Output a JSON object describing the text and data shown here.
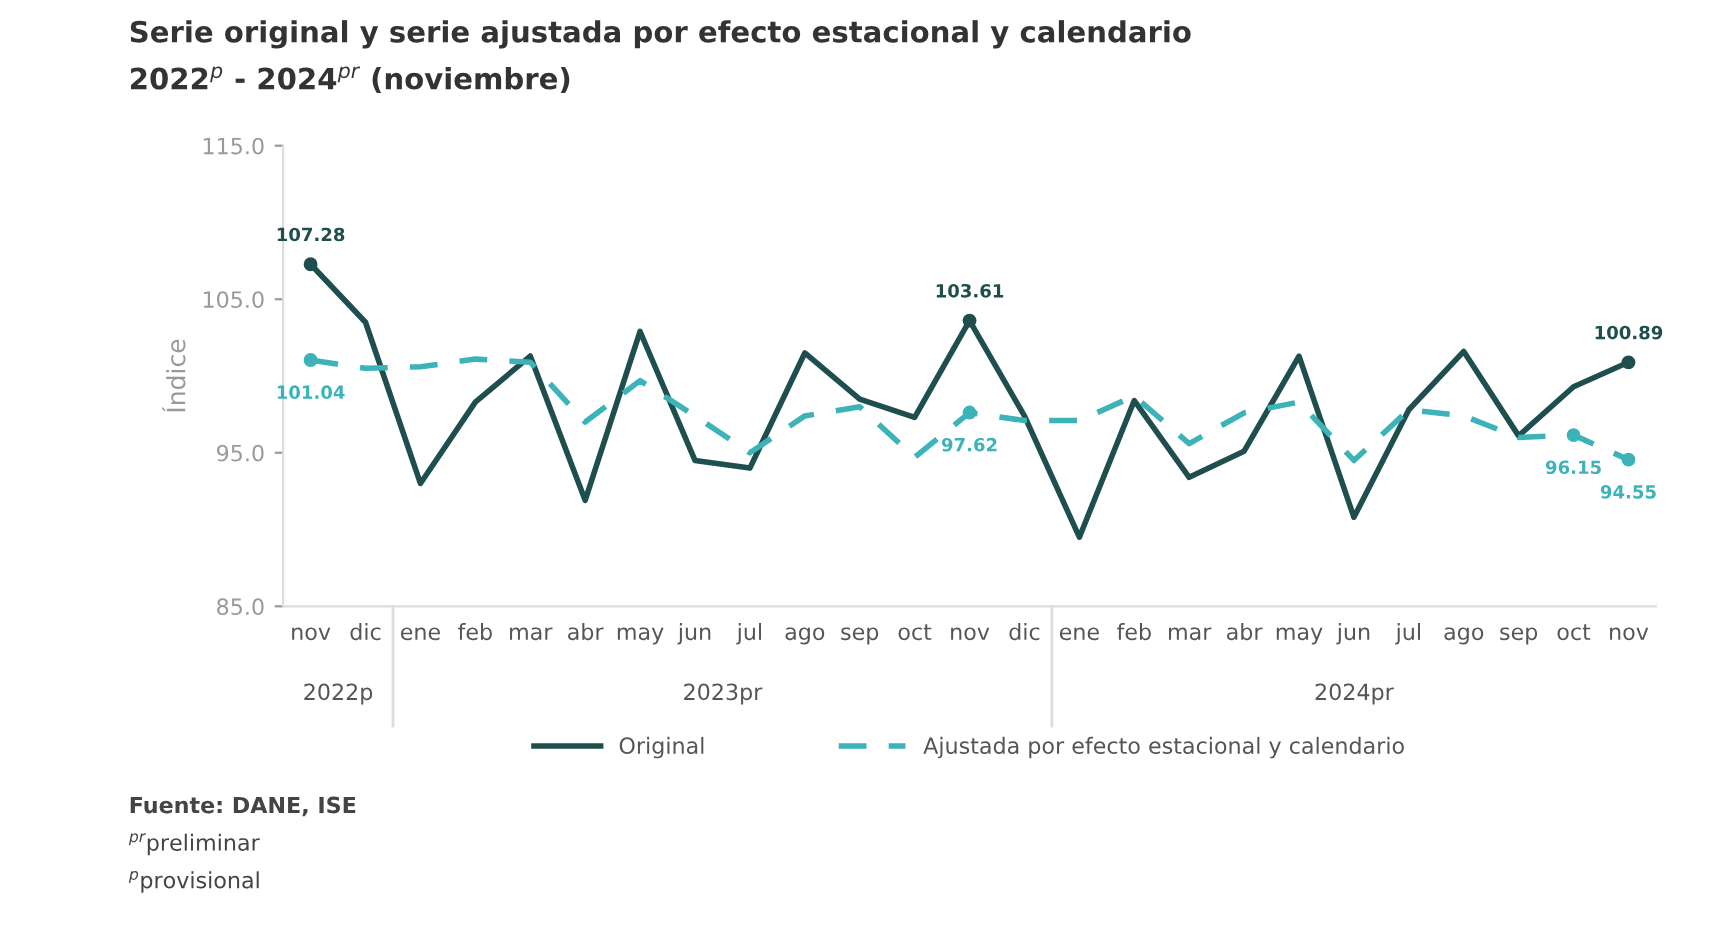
{
  "chart_data": {
    "type": "line",
    "title": "Serie original y serie ajustada por efecto estacional y calendario",
    "subtitle": "2022$^{p}$ - 2024$^{pr}$ (noviembre)",
    "ylabel": "Índice",
    "categories": [
      "nov",
      "dic",
      "ene",
      "feb",
      "mar",
      "abr",
      "may",
      "jun",
      "jul",
      "ago",
      "sep",
      "oct",
      "nov",
      "dic",
      "ene",
      "feb",
      "mar",
      "abr",
      "may",
      "jun",
      "jul",
      "ago",
      "sep",
      "oct",
      "nov"
    ],
    "series": [
      {
        "name": "Original",
        "color": "#1f4e4f",
        "line_style": "solid",
        "values": [
          107.28,
          103.5,
          93.0,
          98.3,
          101.3,
          91.9,
          102.9,
          94.5,
          94.0,
          101.5,
          98.5,
          97.3,
          103.61,
          97.4,
          89.5,
          98.4,
          93.4,
          95.1,
          101.3,
          90.8,
          97.8,
          101.6,
          96.1,
          99.3,
          100.89
        ],
        "value_labels": [
          "107.28",
          null,
          null,
          null,
          null,
          null,
          null,
          null,
          null,
          null,
          null,
          null,
          "103.61",
          null,
          null,
          null,
          null,
          null,
          null,
          null,
          null,
          null,
          null,
          null,
          "100.89"
        ]
      },
      {
        "name": "Ajustada por efecto estacional y calendario",
        "color": "#3cb3b8",
        "line_style": "dashed",
        "values": [
          101.04,
          100.5,
          100.6,
          101.1,
          100.9,
          97.0,
          99.7,
          97.4,
          95.0,
          97.4,
          98.0,
          94.7,
          97.62,
          97.1,
          97.1,
          98.7,
          95.6,
          97.6,
          98.3,
          94.5,
          97.8,
          97.4,
          96.0,
          96.15,
          94.55
        ],
        "value_labels": [
          "101.04",
          null,
          null,
          null,
          null,
          null,
          null,
          null,
          null,
          null,
          null,
          null,
          "97.62",
          null,
          null,
          null,
          null,
          null,
          null,
          null,
          null,
          null,
          null,
          "96.15",
          "94.55"
        ]
      }
    ],
    "ylim": [
      85,
      115
    ],
    "yticks": [
      {
        "value": 85,
        "label": "85.0"
      },
      {
        "value": 95,
        "label": "95.0"
      },
      {
        "value": 105,
        "label": "105.0"
      },
      {
        "value": 115,
        "label": "115.0"
      }
    ],
    "grid": false,
    "legend": "bottom",
    "annotations": [
      "2022p",
      "2023pr",
      "2024pr",
      "Fuente: DANE, ISE",
      "$^{pr}$preliminar",
      "$^{p}$provisional"
    ]
  }
}
